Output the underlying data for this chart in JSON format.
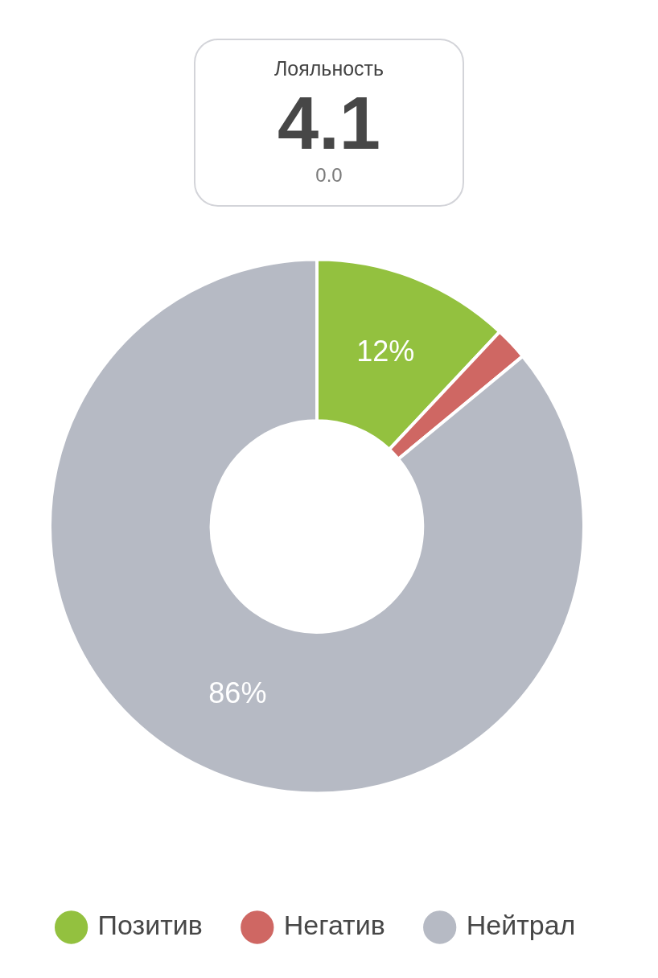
{
  "chart_data": [
    {
      "type": "other",
      "title": "Лояльность",
      "annotations": [
        "4.1",
        "0.0"
      ]
    },
    {
      "type": "donut",
      "categories": [
        "Позитив",
        "Негатив",
        "Нейтрал"
      ],
      "values": [
        12,
        2,
        86
      ],
      "colors": [
        "#93c13f",
        "#cf6763",
        "#b6bac4"
      ],
      "value_labels": [
        "12%",
        null,
        "86%"
      ],
      "legend": "bottom"
    }
  ]
}
